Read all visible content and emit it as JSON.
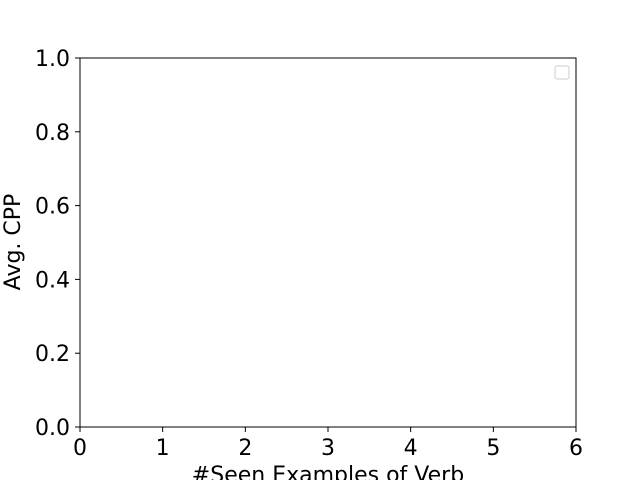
{
  "chart_data": {
    "type": "line",
    "title": "",
    "xlabel": "#Seen Examples of Verb",
    "ylabel": "Avg. CPP",
    "xlim": [
      0,
      6
    ],
    "ylim": [
      0.0,
      1.0
    ],
    "xticks": [
      0,
      1,
      2,
      3,
      4,
      5,
      6
    ],
    "yticks": [
      0.0,
      0.2,
      0.4,
      0.6,
      0.8,
      1.0
    ],
    "xtick_labels": [
      "0",
      "1",
      "2",
      "3",
      "4",
      "5",
      "6"
    ],
    "ytick_labels": [
      "0.0",
      "0.2",
      "0.4",
      "0.6",
      "0.8",
      "1.0"
    ],
    "grid": false,
    "legend": {
      "position": "top-right",
      "entries": []
    },
    "series": []
  }
}
